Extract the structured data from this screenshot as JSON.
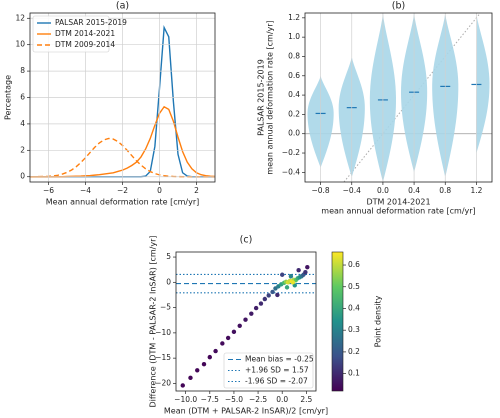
{
  "chart_data": [
    {
      "type": "line",
      "title": "(a)",
      "xlabel": "Mean annual deformation rate [cm/yr]",
      "ylabel": "Percentage",
      "x": [
        -7,
        -6.75,
        -6.5,
        -6.25,
        -6,
        -5.75,
        -5.5,
        -5.25,
        -5,
        -4.75,
        -4.5,
        -4.25,
        -4,
        -3.75,
        -3.5,
        -3.25,
        -3,
        -2.75,
        -2.5,
        -2.25,
        -2,
        -1.75,
        -1.5,
        -1.25,
        -1,
        -0.75,
        -0.5,
        -0.25,
        0,
        0.25,
        0.5,
        0.75,
        1,
        1.25,
        1.5,
        1.75,
        2,
        2.25,
        2.5,
        2.75,
        3
      ],
      "series": [
        {
          "name": "PALSAR 2015-2019",
          "color": "#1f77b4",
          "style": "solid",
          "values": [
            0,
            0,
            0,
            0,
            0,
            0,
            0,
            0,
            0,
            0,
            0,
            0,
            0,
            0,
            0,
            0,
            0,
            0,
            0,
            0,
            0,
            0,
            0,
            0,
            0,
            0.05,
            0.4,
            2.3,
            6.7,
            11.3,
            10.6,
            5.7,
            1.7,
            0.3,
            0.05,
            0,
            0,
            0,
            0,
            0,
            0
          ]
        },
        {
          "name": "DTM 2014-2021",
          "color": "#ff7f0e",
          "style": "solid",
          "values": [
            0,
            0,
            0,
            0,
            0,
            0,
            0,
            0,
            0.02,
            0.03,
            0.04,
            0.05,
            0.07,
            0.09,
            0.12,
            0.15,
            0.2,
            0.25,
            0.3,
            0.4,
            0.5,
            0.65,
            0.85,
            1.1,
            1.5,
            2.1,
            2.9,
            3.9,
            4.8,
            5.3,
            5.1,
            4.2,
            3.0,
            1.9,
            1.1,
            0.6,
            0.3,
            0.15,
            0.08,
            0.04,
            0.02
          ]
        },
        {
          "name": "DTM 2009-2014",
          "color": "#ff7f0e",
          "style": "dashed",
          "values": [
            0,
            0,
            0.01,
            0.02,
            0.03,
            0.06,
            0.11,
            0.2,
            0.33,
            0.51,
            0.76,
            1.08,
            1.44,
            1.84,
            2.23,
            2.56,
            2.79,
            2.9,
            2.85,
            2.67,
            2.37,
            2.0,
            1.6,
            1.21,
            0.88,
            0.6,
            0.39,
            0.24,
            0.14,
            0.08,
            0.04,
            0.02,
            0.01,
            0,
            0,
            0,
            0,
            0,
            0,
            0,
            0
          ]
        }
      ],
      "xlim": [
        -7,
        3
      ],
      "xticks": [
        {
          "value": -6,
          "label": "−6"
        },
        {
          "value": -4,
          "label": "−4"
        },
        {
          "value": -2,
          "label": "−2"
        },
        0,
        2
      ],
      "ylim": [
        -0.4,
        12.4
      ],
      "yticks": [
        0,
        2,
        4,
        6,
        8,
        10,
        12
      ],
      "grid": "both",
      "legend": "upper-left"
    },
    {
      "type": "violin",
      "title": "(b)",
      "xlabel": [
        "DTM 2014-2021",
        "mean annual deformation rate [cm/yr]"
      ],
      "ylabel": [
        "PALSAR 2015-2019",
        "mean annual deformation rate [cm/yr]"
      ],
      "x": [
        -0.8,
        -0.4,
        0,
        0.4,
        0.8,
        1.2
      ],
      "medians": [
        0.21,
        0.27,
        0.35,
        0.43,
        0.49,
        0.51
      ],
      "lows": [
        -0.35,
        -0.45,
        -0.5,
        -0.4,
        -0.45,
        -0.2
      ],
      "highs": [
        0.6,
        0.8,
        1.25,
        1.25,
        1.25,
        1.25
      ],
      "color": "#a9d6e8",
      "median_color": "#1f77b4",
      "xlim": [
        -1.0,
        1.4
      ],
      "xticks": [
        {
          "value": -0.8,
          "label": "−0.8"
        },
        {
          "value": -0.4,
          "label": "−0.4"
        },
        {
          "value": 0,
          "label": "0.0"
        },
        {
          "value": 0.4,
          "label": "0.4"
        },
        {
          "value": 0.8,
          "label": "0.8"
        },
        {
          "value": 1.2,
          "label": "1.2"
        }
      ],
      "ylim": [
        -0.5,
        1.25
      ],
      "yticks": [
        {
          "value": -0.4,
          "label": "−0.4"
        },
        {
          "value": -0.2,
          "label": "−0.2"
        },
        {
          "value": 0,
          "label": "0.0"
        },
        {
          "value": 0.2,
          "label": "0.2"
        },
        {
          "value": 0.4,
          "label": "0.4"
        },
        {
          "value": 0.6,
          "label": "0.6"
        },
        {
          "value": 0.8,
          "label": "0.8"
        },
        {
          "value": 1.0,
          "label": "1.0"
        },
        {
          "value": 1.2,
          "label": "1.2"
        }
      ],
      "grid": "x"
    },
    {
      "type": "scatter",
      "title": "(c)",
      "xlabel": "Mean (DTM + PALSAR-2 InSAR)/2 [cm/yr]",
      "ylabel": "Difference (DTM - PALSAR-2 InSAR) [cm/yr]",
      "x": [
        -10.3,
        -9.5,
        -8.8,
        -8.1,
        -7.5,
        -6.9,
        -6.2,
        -5.6,
        -5.0,
        -4.4,
        -3.8,
        -3.2,
        -2.7,
        -2.2,
        -1.8,
        -1.4,
        -1.0,
        -0.7,
        -0.4,
        -0.1,
        0.2,
        0.4,
        0.6,
        0.8,
        1.0,
        1.2,
        1.4,
        1.6,
        1.8,
        2.0,
        2.2,
        2.4,
        0.5,
        0.9,
        1.3,
        1.7,
        -0.5,
        0.0,
        2.6,
        1.1
      ],
      "y": [
        -20.4,
        -18.9,
        -17.4,
        -16.2,
        -14.8,
        -13.6,
        -12.1,
        -11.0,
        -9.8,
        -8.6,
        -7.4,
        -6.2,
        -5.1,
        -4.2,
        -3.3,
        -2.6,
        -1.9,
        -1.2,
        -0.8,
        -0.4,
        -0.1,
        0.1,
        0.0,
        0.3,
        0.2,
        0.5,
        0.4,
        0.8,
        1.0,
        1.2,
        1.5,
        2.0,
        -1.0,
        1.2,
        -0.6,
        2.4,
        -2.5,
        1.5,
        3.0,
        0.0
      ],
      "density": [
        0.03,
        0.03,
        0.03,
        0.03,
        0.03,
        0.04,
        0.04,
        0.04,
        0.05,
        0.05,
        0.06,
        0.07,
        0.08,
        0.1,
        0.12,
        0.15,
        0.2,
        0.25,
        0.3,
        0.38,
        0.45,
        0.55,
        0.62,
        0.6,
        0.65,
        0.58,
        0.5,
        0.42,
        0.35,
        0.28,
        0.2,
        0.12,
        0.4,
        0.3,
        0.35,
        0.1,
        0.1,
        0.15,
        0.06,
        0.64
      ],
      "colormap": "viridis",
      "clim": [
        0.02,
        0.66
      ],
      "cticks": [
        0.1,
        0.2,
        0.3,
        0.4,
        0.5,
        0.6
      ],
      "clabel": "Point density",
      "lines": [
        {
          "name": "Mean bias = -0.25",
          "value": -0.25,
          "color": "#1f77b4",
          "style": "dashed"
        },
        {
          "name": "+1.96 SD = 1.57",
          "value": 1.57,
          "color": "#1f77b4",
          "style": "dotted"
        },
        {
          "name": "-1.96 SD = -2.07",
          "value": -2.07,
          "color": "#1f77b4",
          "style": "dotted"
        }
      ],
      "xlim": [
        -11,
        3.5
      ],
      "xticks": [
        {
          "value": -10,
          "label": "−10.0"
        },
        {
          "value": -7.5,
          "label": "−7.5"
        },
        {
          "value": -5,
          "label": "−5.0"
        },
        {
          "value": -2.5,
          "label": "−2.5"
        },
        {
          "value": 0,
          "label": "0.0"
        },
        {
          "value": 2.5,
          "label": "2.5"
        }
      ],
      "ylim": [
        -21.5,
        6
      ],
      "yticks": [
        {
          "value": -20,
          "label": "−20"
        },
        {
          "value": -15,
          "label": "−15"
        },
        {
          "value": -10,
          "label": "−10"
        },
        {
          "value": -5,
          "label": "−5"
        },
        0,
        5
      ],
      "grid": "none",
      "legend": "lower-right"
    }
  ]
}
